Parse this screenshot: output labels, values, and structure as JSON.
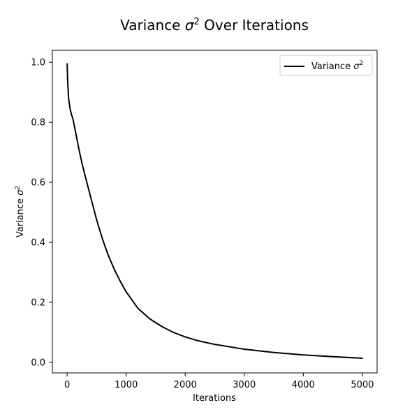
{
  "chart_data": {
    "type": "line",
    "title_main": "Variance ",
    "title_symbol": "σ",
    "title_sup": "2",
    "title_tail": " Over Iterations",
    "xlabel": "Iterations",
    "ylabel_main": "Variance ",
    "ylabel_symbol": "σ",
    "ylabel_sup": "2",
    "xlim": [
      -250,
      5250
    ],
    "ylim": [
      -0.035,
      1.04
    ],
    "xticks": [
      0,
      1000,
      2000,
      3000,
      4000,
      5000
    ],
    "xtick_labels": [
      "0",
      "1000",
      "2000",
      "3000",
      "4000",
      "5000"
    ],
    "yticks": [
      0.0,
      0.2,
      0.4,
      0.6,
      0.8,
      1.0
    ],
    "ytick_labels": [
      "0.0",
      "0.2",
      "0.4",
      "0.6",
      "0.8",
      "1.0"
    ],
    "grid": false,
    "legend_position": "top-right",
    "series": [
      {
        "name_main": "Variance ",
        "name_symbol": "σ",
        "name_sup": "2",
        "color": "#000000",
        "x": [
          0,
          10,
          25,
          50,
          75,
          100,
          150,
          200,
          250,
          300,
          400,
          500,
          600,
          700,
          800,
          900,
          1000,
          1200,
          1400,
          1600,
          1800,
          2000,
          2200,
          2500,
          3000,
          3500,
          4000,
          4500,
          5000
        ],
        "y": [
          0.995,
          0.93,
          0.88,
          0.845,
          0.825,
          0.81,
          0.76,
          0.71,
          0.665,
          0.625,
          0.55,
          0.475,
          0.41,
          0.355,
          0.31,
          0.27,
          0.235,
          0.18,
          0.145,
          0.12,
          0.1,
          0.085,
          0.073,
          0.06,
          0.044,
          0.033,
          0.025,
          0.019,
          0.014
        ]
      }
    ]
  }
}
